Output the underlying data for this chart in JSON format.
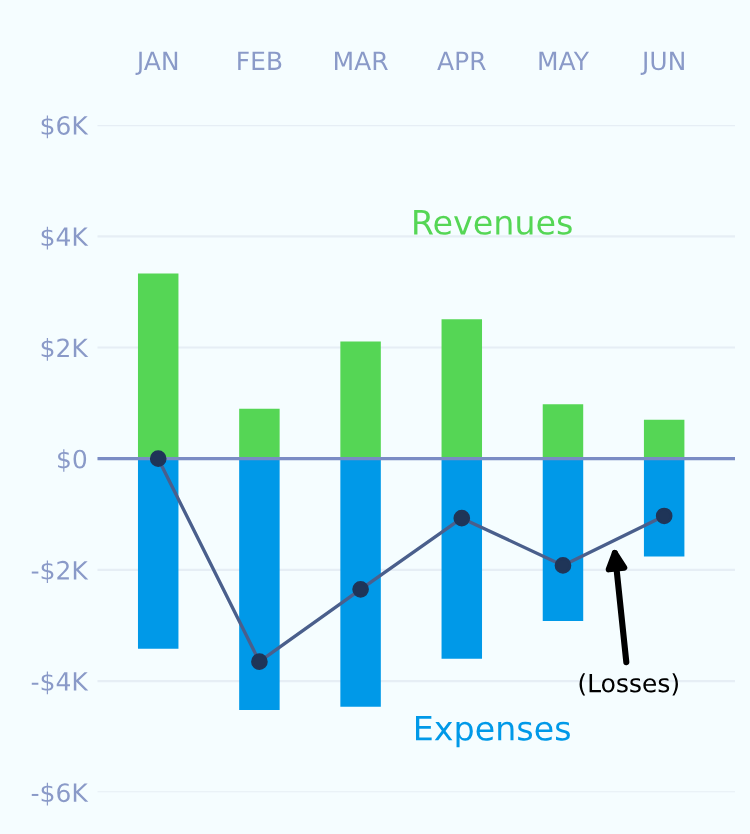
{
  "chart_data": {
    "type": "bar",
    "categories": [
      "JAN",
      "FEB",
      "MAR",
      "APR",
      "MAY",
      "JUN"
    ],
    "series": [
      {
        "name": "Revenues",
        "color": "#55d655",
        "values": [
          3.33,
          0.9,
          2.11,
          2.51,
          0.98,
          0.7
        ]
      },
      {
        "name": "Expenses",
        "color": "#0099e8",
        "values": [
          -3.42,
          -4.52,
          -4.46,
          -3.6,
          -2.92,
          -1.76
        ]
      },
      {
        "name": "(Losses)",
        "type": "line",
        "color": "#4a5f8c",
        "values": [
          0,
          -3.65,
          -2.35,
          -1.07,
          -1.92,
          -1.03
        ],
        "marker": "circle",
        "line_style": "solid"
      }
    ],
    "ylim": [
      -6,
      6
    ],
    "yticks": [
      {
        "value": 6,
        "label": "$6K"
      },
      {
        "value": 4,
        "label": "$4K"
      },
      {
        "value": 2,
        "label": "$2K"
      },
      {
        "value": 0,
        "label": "$0"
      },
      {
        "value": -2,
        "label": "-$2K"
      },
      {
        "value": -4,
        "label": "-$4K"
      },
      {
        "value": -6,
        "label": "-$6K"
      }
    ],
    "ref_lines": [
      {
        "axis": "y",
        "value": 0,
        "color": "#7a8cc4"
      }
    ],
    "stacked": true,
    "grid": "y",
    "legend": false
  }
}
